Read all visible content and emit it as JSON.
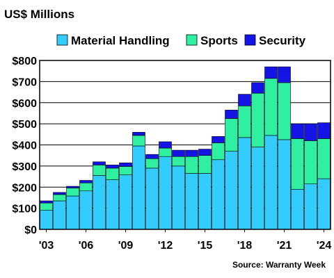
{
  "chart_data": {
    "type": "bar",
    "stacked": true,
    "title": "US$ Millions",
    "source": "Source: Warranty Week",
    "years": [
      2003,
      2004,
      2005,
      2006,
      2007,
      2008,
      2009,
      2010,
      2011,
      2012,
      2013,
      2014,
      2015,
      2016,
      2017,
      2018,
      2019,
      2020,
      2021,
      2022,
      2023,
      2024
    ],
    "x_tick_labels": [
      "'03",
      "'06",
      "'09",
      "'12",
      "'15",
      "'18",
      "'21",
      "'24"
    ],
    "x_tick_years": [
      2003,
      2006,
      2009,
      2012,
      2015,
      2018,
      2021,
      2024
    ],
    "y_tick_labels": [
      "$0",
      "$100",
      "$200",
      "$300",
      "$400",
      "$500",
      "$600",
      "$700",
      "$800"
    ],
    "ylim": [
      0,
      800
    ],
    "grid": "horizontal",
    "legend_position": "top",
    "series": [
      {
        "name": "Material Handling",
        "color": "#33CCFF",
        "values": [
          90,
          135,
          158,
          182,
          255,
          235,
          258,
          395,
          290,
          345,
          300,
          265,
          265,
          330,
          370,
          435,
          390,
          445,
          425,
          190,
          215,
          240
        ]
      },
      {
        "name": "Sports",
        "color": "#2EF0A0",
        "values": [
          35,
          30,
          38,
          38,
          50,
          55,
          40,
          50,
          45,
          40,
          45,
          80,
          85,
          80,
          155,
          150,
          255,
          270,
          270,
          240,
          205,
          190
        ]
      },
      {
        "name": "Security",
        "color": "#1414E6",
        "values": [
          10,
          10,
          8,
          12,
          15,
          15,
          17,
          15,
          20,
          30,
          30,
          30,
          30,
          30,
          40,
          55,
          50,
          55,
          75,
          70,
          80,
          75
        ]
      }
    ]
  }
}
